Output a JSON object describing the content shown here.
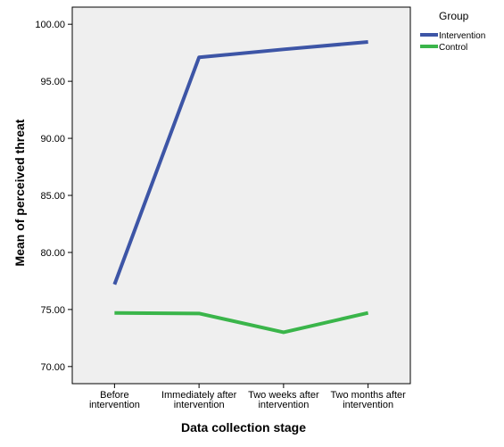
{
  "chart_data": {
    "type": "line",
    "categories": [
      [
        "Before",
        "intervention"
      ],
      [
        "Immediately after",
        "intervention"
      ],
      [
        "Two weeks after",
        "intervention"
      ],
      [
        "Two months after",
        "intervention"
      ]
    ],
    "series": [
      {
        "name": "Intervention",
        "color": "#3d55a6",
        "values": [
          77.2,
          97.1,
          97.8,
          98.45
        ]
      },
      {
        "name": "Control",
        "color": "#3ab54a",
        "values": [
          74.7,
          74.65,
          73.0,
          74.7
        ]
      }
    ],
    "xlabel": "Data collection stage",
    "ylabel": "Mean of perceived threat",
    "ylim": [
      68.5,
      101.5
    ],
    "yticks": [
      "70.00",
      "75.00",
      "80.00",
      "85.00",
      "90.00",
      "95.00",
      "100.00"
    ],
    "legend_title": "Group",
    "legend_position": "top-right",
    "plot_background": "#efefef",
    "grid": false
  }
}
